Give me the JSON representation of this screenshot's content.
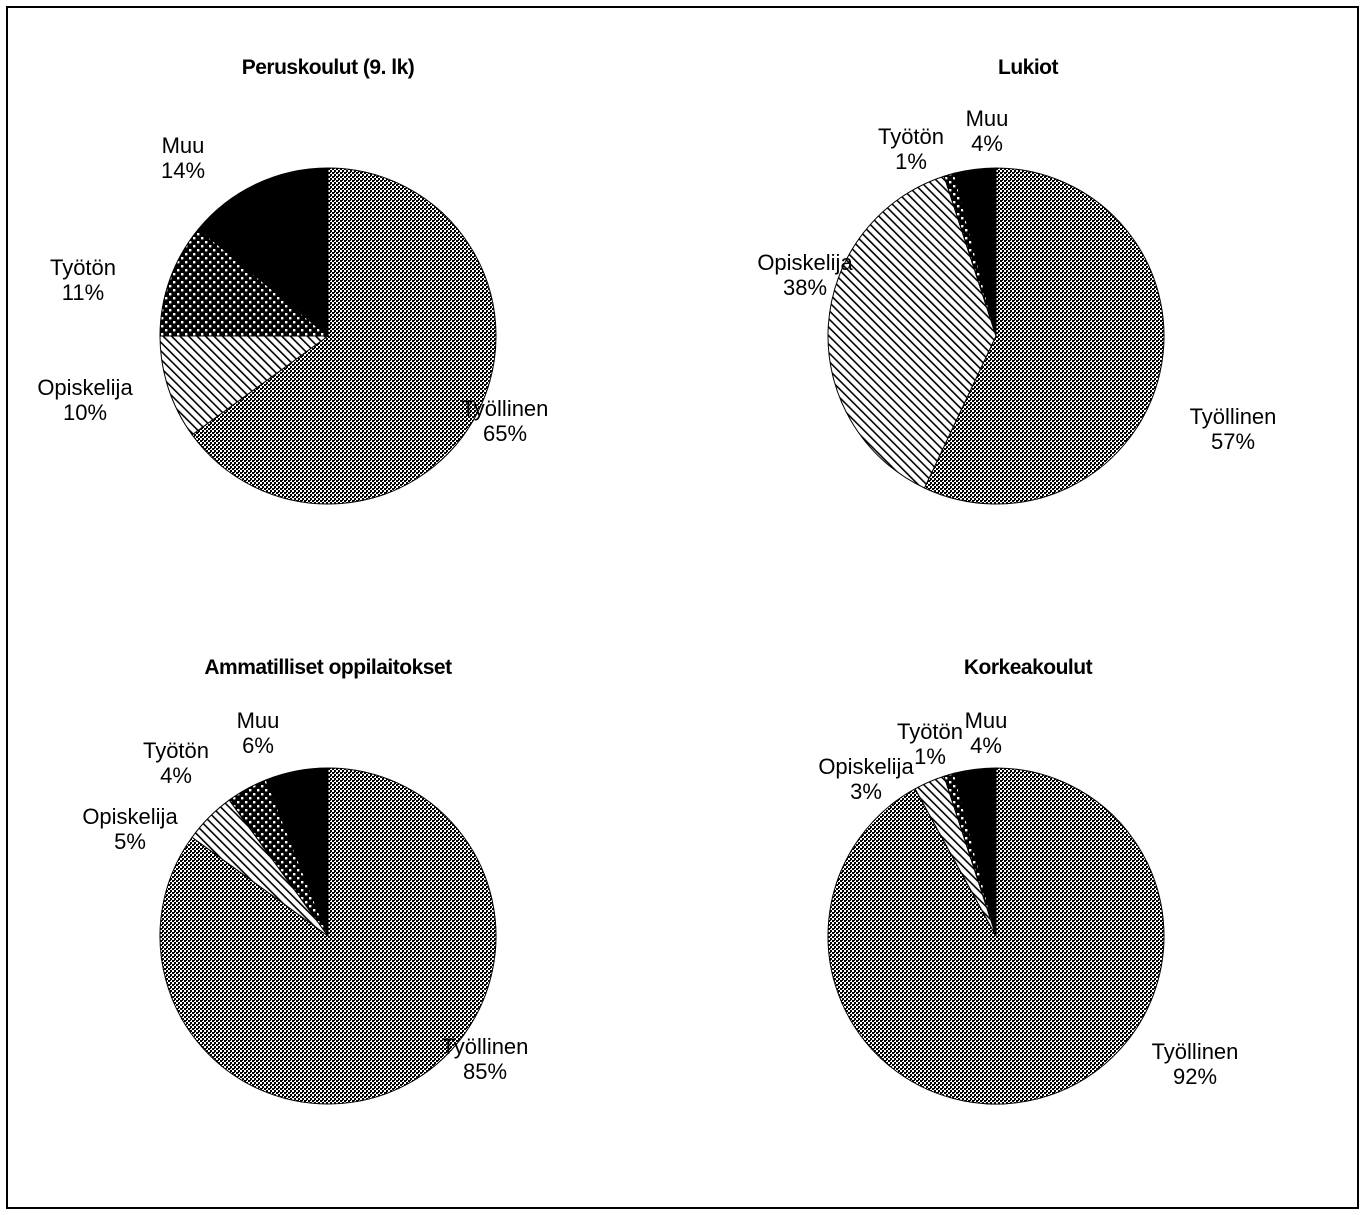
{
  "chart_data": [
    {
      "type": "pie",
      "title": "Peruskoulut (9. lk)",
      "slices": [
        {
          "label": "Työllinen",
          "value": 65,
          "pattern": "dots"
        },
        {
          "label": "Opiskelija",
          "value": 10,
          "pattern": "hatch"
        },
        {
          "label": "Työtön",
          "value": 11,
          "pattern": "checker"
        },
        {
          "label": "Muu",
          "value": 14,
          "pattern": "solid"
        }
      ],
      "legend": "none"
    },
    {
      "type": "pie",
      "title": "Lukiot",
      "slices": [
        {
          "label": "Työllinen",
          "value": 57,
          "pattern": "dots"
        },
        {
          "label": "Opiskelija",
          "value": 38,
          "pattern": "hatch"
        },
        {
          "label": "Työtön",
          "value": 1,
          "pattern": "checker"
        },
        {
          "label": "Muu",
          "value": 4,
          "pattern": "solid"
        }
      ],
      "legend": "none"
    },
    {
      "type": "pie",
      "title": "Ammatilliset oppilaitokset",
      "slices": [
        {
          "label": "Työllinen",
          "value": 85,
          "pattern": "dots"
        },
        {
          "label": "Opiskelija",
          "value": 5,
          "pattern": "hatch"
        },
        {
          "label": "Työtön",
          "value": 4,
          "pattern": "checker"
        },
        {
          "label": "Muu",
          "value": 6,
          "pattern": "solid"
        }
      ],
      "legend": "none"
    },
    {
      "type": "pie",
      "title": "Korkeakoulut",
      "slices": [
        {
          "label": "Työllinen",
          "value": 92,
          "pattern": "dots"
        },
        {
          "label": "Opiskelija",
          "value": 3,
          "pattern": "hatch"
        },
        {
          "label": "Työtön",
          "value": 1,
          "pattern": "checker"
        },
        {
          "label": "Muu",
          "value": 4,
          "pattern": "solid"
        }
      ],
      "legend": "none"
    }
  ]
}
